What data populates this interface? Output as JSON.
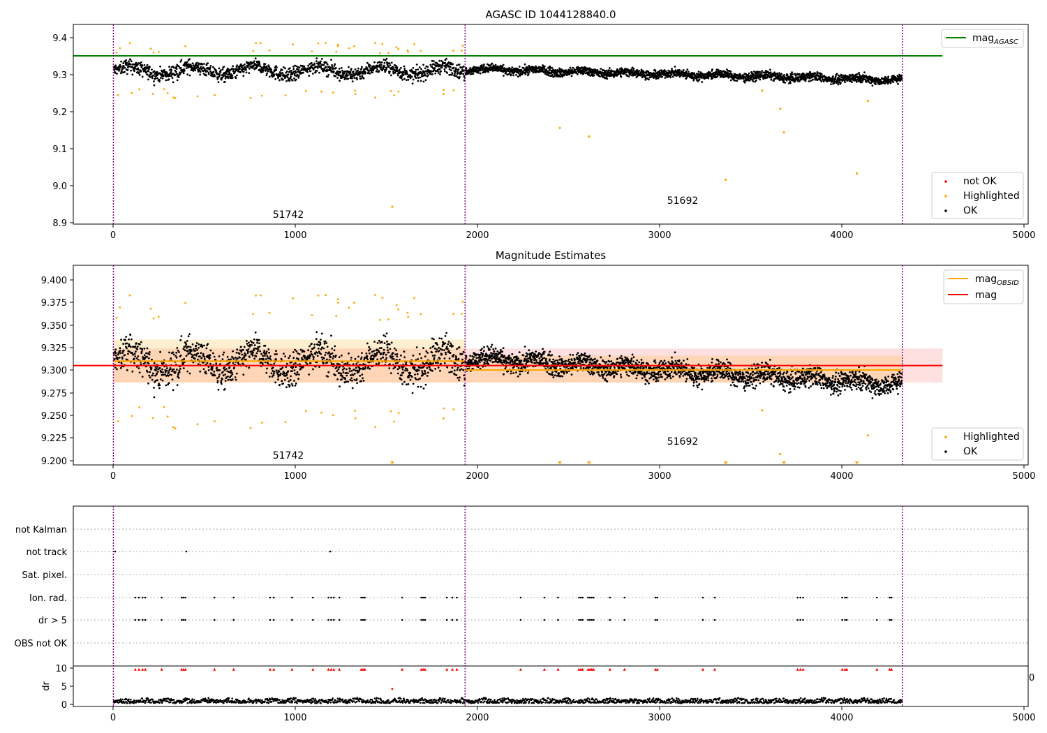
{
  "figure_title": "AGASC ID 1044128840.0",
  "panel2_title": "Magnitude Estimates",
  "colors": {
    "ok": "#000000",
    "highlighted": "#ffa500",
    "not_ok": "#ff0000",
    "mag_agasc": "#008000",
    "mag_obsid": "#ffa500",
    "mag": "#ff0000",
    "obs_boundary": "#800080"
  },
  "obsid_labels": [
    "51742",
    "51692"
  ],
  "obs_boundaries": [
    0,
    1930,
    4330
  ],
  "legend_text": {
    "mag_agasc_base": "mag",
    "mag_agasc_sub": "AGASC",
    "mag_obsid_base": "mag",
    "mag_obsid_sub": "OBSID",
    "mag": "mag",
    "not_ok": "not OK",
    "highlighted": "Highlighted",
    "ok": "OK"
  },
  "flag_rows": [
    "not Kalman",
    "not track",
    "Sat. pixel.",
    "Ion. rad.",
    "dr > 5",
    "OBS not OK"
  ],
  "dr_ylabel": "dr",
  "x_ticks": [
    "0",
    "1000",
    "2000",
    "3000",
    "4000",
    "5000"
  ],
  "panel1_y_ticks": [
    "9.4",
    "9.3",
    "9.2",
    "9.1",
    "9.0",
    "8.9"
  ],
  "panel2_y_ticks": [
    "9.400",
    "9.375",
    "9.350",
    "9.325",
    "9.300",
    "9.275",
    "9.250",
    "9.225",
    "9.200"
  ],
  "dr_y_ticks": [
    "10",
    "5",
    "0"
  ],
  "stray_tick_label": "0",
  "chart_data": [
    {
      "type": "scatter",
      "title": "AGASC ID 1044128840.0",
      "xlim": [
        -220,
        5020
      ],
      "ylim": [
        8.895,
        9.435
      ],
      "mag_agasc": 9.35,
      "obs_segments": [
        {
          "obsid": "51742",
          "x": [
            0,
            1930
          ],
          "y_center": 9.31,
          "spread": 0.018,
          "trend": 0
        },
        {
          "obsid": "51692",
          "x": [
            1930,
            4330
          ],
          "y_center": 9.3,
          "spread": 0.011,
          "trend": -0.025
        }
      ],
      "highlighted_outliers": [
        [
          1530,
          8.942
        ],
        [
          2450,
          9.155
        ],
        [
          2610,
          9.132
        ],
        [
          3360,
          9.015
        ],
        [
          3660,
          9.207
        ],
        [
          3680,
          9.143
        ],
        [
          4080,
          9.032
        ],
        [
          4140,
          9.228
        ],
        [
          3560,
          9.256
        ]
      ],
      "legend": [
        "mag_AGASC",
        "not OK",
        "Highlighted",
        "OK"
      ],
      "legend_placement": [
        "top-right",
        "bottom-right"
      ]
    },
    {
      "type": "scatter",
      "title": "Magnitude Estimates",
      "xlim": [
        -220,
        5020
      ],
      "ylim": [
        9.195,
        9.418
      ],
      "mag": 9.306,
      "mag_band": [
        9.287,
        9.325
      ],
      "mag_obsid": [
        {
          "x": [
            0,
            1930
          ],
          "value": 9.311,
          "band": [
            9.287,
            9.335
          ]
        },
        {
          "x": [
            1930,
            4330
          ],
          "value": 9.301,
          "band": [
            9.287,
            9.317
          ]
        }
      ],
      "highlighted_outliers": [
        [
          3660,
          9.207
        ],
        [
          4140,
          9.228
        ],
        [
          3560,
          9.256
        ]
      ],
      "offscale_markers_x": [
        1530,
        2450,
        2610,
        3360,
        3680,
        4080
      ],
      "legend": [
        "mag_OBSID",
        "mag",
        "Highlighted",
        "OK"
      ],
      "legend_placement": [
        "top-right",
        "bottom-right"
      ]
    },
    {
      "type": "scatter",
      "title": "",
      "ylabel": "",
      "categories": [
        "not Kalman",
        "not track",
        "Sat. pixel.",
        "Ion. rad.",
        "dr > 5",
        "OBS not OK"
      ],
      "not_track_x": [
        10,
        400,
        1190
      ],
      "dr_gt5_x": [
        120,
        140,
        160,
        175,
        265,
        375,
        385,
        395,
        555,
        660,
        860,
        880,
        980,
        1095,
        1180,
        1195,
        1210,
        1240,
        1360,
        1370,
        1380,
        1585,
        1690,
        1700,
        1710,
        1830,
        1860,
        1885,
        2235,
        2365,
        2440,
        2555,
        2565,
        2575,
        2605,
        2615,
        2625,
        2635,
        2725,
        2805,
        2975,
        2985,
        3235,
        3300,
        3755,
        3770,
        3785,
        4000,
        4015,
        4025,
        4190,
        4260,
        4270
      ]
    },
    {
      "type": "scatter",
      "title": "",
      "ylabel": "dr",
      "ylim": [
        -0.6,
        10.5
      ],
      "typical_dr": [
        0.3,
        1.8
      ],
      "outlier_points": [
        [
          1530,
          4.2
        ]
      ]
    }
  ]
}
